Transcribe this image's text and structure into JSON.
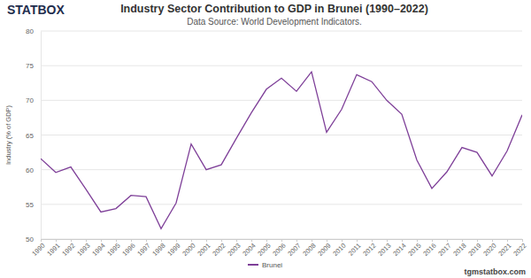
{
  "chart_data": {
    "type": "line",
    "title": "Industry Sector Contribution to GDP in Brunei (1990–2022)",
    "subtitle": "Data Source: World Development Indicators.",
    "logo_text": "STATBOX",
    "footer_text": "tgmstatbox.com",
    "y_label": "Industry (% of GDP)",
    "categories": [
      "1990",
      "1991",
      "1992",
      "1993",
      "1994",
      "1995",
      "1996",
      "1997",
      "1998",
      "1999",
      "2000",
      "2001",
      "2002",
      "2003",
      "2004",
      "2005",
      "2006",
      "2007",
      "2008",
      "2009",
      "2010",
      "2011",
      "2012",
      "2013",
      "2014",
      "2015",
      "2016",
      "2017",
      "2018",
      "2019",
      "2020",
      "2021",
      "2022"
    ],
    "series": [
      {
        "name": "Brunei",
        "color": "#7e3f98",
        "values": [
          61.6,
          59.6,
          60.4,
          57.2,
          53.9,
          54.4,
          56.3,
          56.1,
          51.5,
          55.2,
          63.7,
          60.0,
          60.7,
          64.5,
          68.2,
          71.6,
          73.2,
          71.3,
          74.1,
          65.4,
          68.7,
          73.7,
          72.7,
          70.0,
          68.0,
          61.4,
          57.3,
          59.7,
          63.2,
          62.5,
          59.1,
          62.7,
          67.9
        ]
      }
    ],
    "ylim": [
      50,
      80
    ],
    "yticks": [
      50,
      55,
      60,
      65,
      70,
      75,
      80
    ],
    "grid": true,
    "legend": "bottom"
  }
}
